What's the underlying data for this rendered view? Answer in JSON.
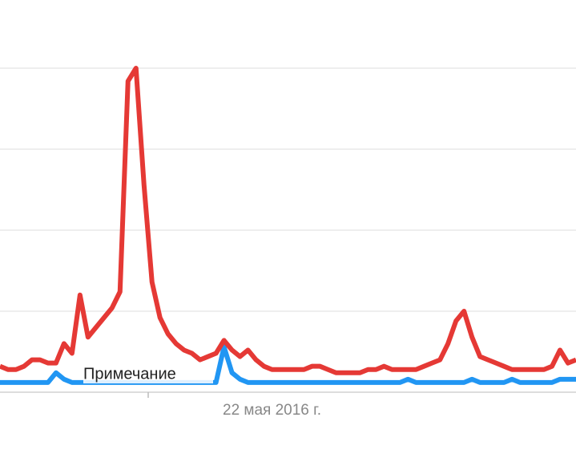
{
  "chart_data": {
    "type": "line",
    "categories": [
      null,
      null,
      null,
      null,
      null,
      null,
      null,
      null,
      null,
      null,
      null,
      null,
      null,
      null,
      null,
      null,
      null,
      null,
      null,
      null,
      null,
      null,
      null,
      null,
      null,
      null,
      null,
      null,
      null,
      null,
      null,
      null,
      null,
      null,
      "22 мая 2016 г.",
      null,
      null,
      null,
      null,
      null,
      null,
      null,
      null,
      null,
      null,
      null,
      null,
      null,
      null,
      null,
      null,
      null,
      null,
      null,
      null,
      null,
      null,
      null,
      null,
      null,
      null,
      null,
      null,
      null,
      null,
      null,
      null,
      null,
      null,
      null,
      null,
      null,
      null
    ],
    "series": [
      {
        "color": "#e53935",
        "values": [
          8,
          7,
          7,
          8,
          10,
          10,
          9,
          9,
          15,
          12,
          30,
          17,
          20,
          23,
          26,
          31,
          96,
          100,
          64,
          34,
          23,
          18,
          15,
          13,
          12,
          10,
          11,
          12,
          16,
          13,
          11,
          13,
          10,
          8,
          7,
          7,
          7,
          7,
          7,
          8,
          8,
          7,
          6,
          6,
          6,
          6,
          7,
          7,
          8,
          7,
          7,
          7,
          7,
          8,
          9,
          10,
          15,
          22,
          25,
          17,
          11,
          10,
          9,
          8,
          7,
          7,
          7,
          7,
          7,
          8,
          13,
          9,
          10
        ]
      },
      {
        "color": "#2196f3",
        "values": [
          3,
          3,
          3,
          3,
          3,
          3,
          3,
          6,
          4,
          3,
          3,
          3,
          3,
          3,
          3,
          3,
          3,
          3,
          3,
          3,
          3,
          3,
          3,
          3,
          3,
          3,
          3,
          3,
          14,
          6,
          4,
          3,
          3,
          3,
          3,
          3,
          3,
          3,
          3,
          3,
          3,
          3,
          3,
          3,
          3,
          3,
          3,
          3,
          3,
          3,
          3,
          4,
          3,
          3,
          3,
          3,
          3,
          3,
          3,
          4,
          3,
          3,
          3,
          3,
          4,
          3,
          3,
          3,
          3,
          3,
          4,
          4,
          4
        ]
      }
    ],
    "annotation": "Примечание",
    "ylim": [
      0,
      100
    ],
    "yticks": [
      0,
      25,
      50,
      75,
      100
    ],
    "grid": true
  }
}
